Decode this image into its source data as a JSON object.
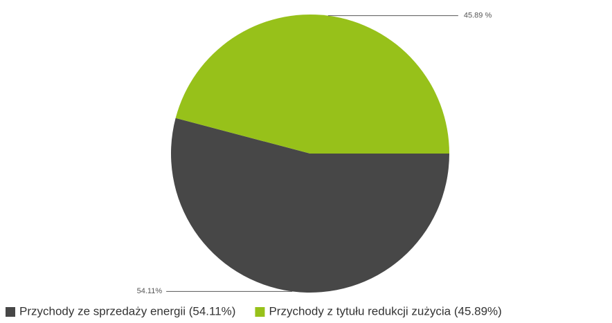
{
  "chart_data": {
    "type": "pie",
    "categories": [
      "Przychody ze sprzedaży energii (54.11%)",
      "Przychody z tytułu redukcji zużycia (45.89%)"
    ],
    "values": [
      54.11,
      45.89
    ],
    "value_labels": [
      "54.11%",
      "45.89 %"
    ],
    "colors": [
      "#474747",
      "#97c11a"
    ],
    "legend": "bottom"
  }
}
